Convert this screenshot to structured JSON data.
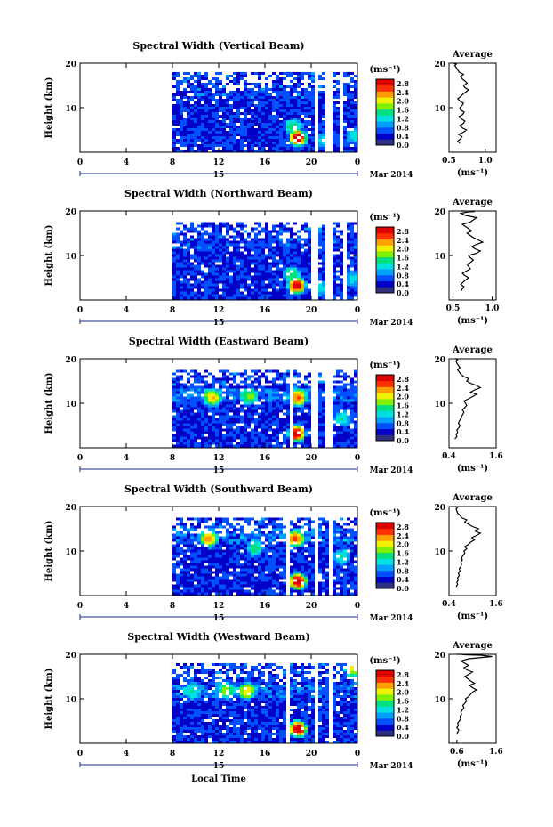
{
  "figure": {
    "xlabel": "Local Time",
    "date_label": "Mar 2014",
    "day_label": "15",
    "avg_title": "Average",
    "unit": "(ms⁻¹)",
    "ylabel": "Height (km)"
  },
  "colorbar": {
    "ticks": [
      "0.0",
      "0.4",
      "0.8",
      "1.2",
      "1.6",
      "2.0",
      "2.4",
      "2.8"
    ],
    "range": [
      0,
      3.0
    ],
    "colors": [
      "#303080",
      "#0000c8",
      "#0050ff",
      "#00a0ff",
      "#00e0e0",
      "#00e080",
      "#80f000",
      "#f0f000",
      "#ffa000",
      "#ff3000",
      "#e00000"
    ]
  },
  "chart_data": [
    {
      "type": "heatmap",
      "title": "Spectral Width (Vertical Beam)",
      "x_ticks": [
        "0",
        "4",
        "8",
        "12",
        "16",
        "20",
        "0"
      ],
      "xlim": [
        0,
        24
      ],
      "ylim": [
        0,
        20
      ],
      "y_ticks": [
        "20",
        "10"
      ],
      "data_start_hour": 8,
      "top_km": 18,
      "gaps": [
        [
          20.2,
          20.6
        ],
        [
          21.1,
          21.7
        ],
        [
          22.2,
          22.5
        ]
      ],
      "hot_spots": [
        [
          18.7,
          3.5,
          3.0
        ],
        [
          18.3,
          6.0,
          1.6
        ],
        [
          21.0,
          3.0,
          1.2
        ],
        [
          23.6,
          4.0,
          1.2
        ]
      ],
      "mid_band_km": 0,
      "average": {
        "xlim": [
          0.5,
          1.15
        ],
        "x_ticks": [
          "0.5",
          "1.0"
        ],
        "x": [
          0.65,
          0.62,
          0.66,
          0.68,
          0.63,
          0.7,
          0.74,
          0.68,
          0.65,
          0.7,
          0.72,
          0.67,
          0.64,
          0.69,
          0.71,
          0.66,
          0.65,
          0.68,
          0.7,
          0.65,
          0.62,
          0.66,
          0.69,
          0.73,
          0.77,
          0.72,
          0.7,
          0.75,
          0.72,
          0.68,
          0.66,
          0.7,
          0.64,
          0.62,
          0.6,
          0.58,
          0.6,
          0.59,
          0.57,
          0.56
        ],
        "y": [
          2.0,
          2.5,
          3.0,
          3.5,
          4.0,
          4.5,
          5.0,
          5.5,
          6.0,
          6.5,
          7.0,
          7.5,
          8.0,
          8.5,
          9.0,
          9.5,
          10.0,
          10.5,
          11.0,
          11.5,
          12.0,
          12.5,
          13.0,
          13.5,
          14.0,
          14.5,
          15.0,
          15.5,
          16.0,
          16.5,
          17.0,
          17.5,
          18.0,
          18.5,
          19.0,
          19.5,
          19.8,
          19.9,
          20.0,
          20.0
        ]
      }
    },
    {
      "type": "heatmap",
      "title": "Spectral Width (Northward Beam)",
      "x_ticks": [
        "0",
        "4",
        "8",
        "12",
        "16",
        "20",
        "0"
      ],
      "xlim": [
        0,
        24
      ],
      "ylim": [
        0,
        20
      ],
      "y_ticks": [
        "20",
        "10"
      ],
      "data_start_hour": 8,
      "top_km": 17.5,
      "gaps": [
        [
          20.0,
          20.5
        ],
        [
          21.1,
          21.6
        ],
        [
          22.6,
          22.9
        ]
      ],
      "hot_spots": [
        [
          18.6,
          3.5,
          3.0
        ],
        [
          18.2,
          6.0,
          1.6
        ],
        [
          20.7,
          3.0,
          1.2
        ],
        [
          23.5,
          5.0,
          1.2
        ]
      ],
      "mid_band_km": 0,
      "average": {
        "xlim": [
          0.45,
          1.05
        ],
        "x_ticks": [
          "0.5",
          "1.0"
        ],
        "x": [
          0.6,
          0.62,
          0.64,
          0.6,
          0.63,
          0.66,
          0.7,
          0.65,
          0.62,
          0.67,
          0.72,
          0.7,
          0.68,
          0.73,
          0.76,
          0.72,
          0.7,
          0.8,
          0.85,
          0.78,
          0.74,
          0.8,
          0.88,
          0.82,
          0.76,
          0.72,
          0.68,
          0.74,
          0.7,
          0.66,
          0.62,
          0.72,
          0.76,
          0.8,
          0.66,
          0.6,
          0.7,
          0.78,
          0.64,
          0.6
        ],
        "y": [
          2.0,
          2.5,
          3.0,
          3.5,
          4.0,
          4.5,
          5.0,
          5.5,
          6.0,
          6.5,
          7.0,
          7.5,
          8.0,
          8.5,
          9.0,
          9.5,
          10.0,
          10.5,
          11.0,
          11.5,
          12.0,
          12.5,
          13.0,
          13.5,
          14.0,
          14.5,
          15.0,
          15.5,
          16.0,
          16.5,
          17.0,
          17.5,
          18.0,
          18.5,
          19.0,
          19.5,
          19.8,
          19.9,
          20.0,
          20.0
        ]
      }
    },
    {
      "type": "heatmap",
      "title": "Spectral Width (Eastward Beam)",
      "x_ticks": [
        "0",
        "4",
        "8",
        "12",
        "16",
        "20",
        "0"
      ],
      "xlim": [
        0,
        24
      ],
      "ylim": [
        0,
        20
      ],
      "y_ticks": [
        "20",
        "10"
      ],
      "data_start_hour": 8,
      "top_km": 17.5,
      "gaps": [
        [
          18.0,
          18.3
        ],
        [
          20.0,
          20.5
        ],
        [
          21.2,
          21.7
        ]
      ],
      "hot_spots": [
        [
          18.6,
          3.5,
          3.0
        ],
        [
          18.7,
          11.5,
          2.6
        ],
        [
          11.3,
          11.5,
          2.2
        ],
        [
          14.5,
          11.8,
          1.8
        ],
        [
          22.6,
          7.0,
          1.4
        ]
      ],
      "mid_band_km": 12,
      "average": {
        "xlim": [
          0.4,
          1.6
        ],
        "x_ticks": [
          "0.4",
          "1.6"
        ],
        "x": [
          0.55,
          0.6,
          0.58,
          0.62,
          0.6,
          0.65,
          0.68,
          0.64,
          0.66,
          0.7,
          0.72,
          0.75,
          0.78,
          0.74,
          0.8,
          0.85,
          0.82,
          0.78,
          0.9,
          1.0,
          1.1,
          0.95,
          1.05,
          1.2,
          1.1,
          0.95,
          0.85,
          0.9,
          0.78,
          0.7,
          0.66,
          0.62,
          0.68,
          0.64,
          0.6,
          0.58,
          0.62,
          0.6,
          0.58,
          0.56
        ],
        "y": [
          2.0,
          2.5,
          3.0,
          3.5,
          4.0,
          4.5,
          5.0,
          5.5,
          6.0,
          6.5,
          7.0,
          7.5,
          8.0,
          8.5,
          9.0,
          9.5,
          10.0,
          10.5,
          11.0,
          11.5,
          12.0,
          12.5,
          13.0,
          13.5,
          14.0,
          14.5,
          15.0,
          15.5,
          16.0,
          16.5,
          17.0,
          17.5,
          18.0,
          18.5,
          19.0,
          19.5,
          19.8,
          19.9,
          20.0,
          20.0
        ]
      }
    },
    {
      "type": "heatmap",
      "title": "Spectral Width (Southward Beam)",
      "x_ticks": [
        "0",
        "4",
        "8",
        "12",
        "16",
        "20",
        "0"
      ],
      "xlim": [
        0,
        24
      ],
      "ylim": [
        0,
        20
      ],
      "y_ticks": [
        "20",
        "10"
      ],
      "data_start_hour": 8,
      "top_km": 17.5,
      "gaps": [
        [
          17.8,
          18.1
        ],
        [
          20.1,
          20.6
        ],
        [
          21.3,
          21.8
        ]
      ],
      "hot_spots": [
        [
          18.7,
          3.5,
          3.0
        ],
        [
          18.5,
          13.0,
          2.6
        ],
        [
          11.0,
          13.0,
          2.4
        ],
        [
          15.0,
          11.0,
          1.6
        ],
        [
          22.5,
          9.0,
          1.4
        ]
      ],
      "mid_band_km": 14,
      "average": {
        "xlim": [
          0.4,
          1.6
        ],
        "x_ticks": [
          "0.4",
          "1.6"
        ],
        "x": [
          0.58,
          0.62,
          0.6,
          0.64,
          0.62,
          0.66,
          0.64,
          0.68,
          0.66,
          0.7,
          0.72,
          0.7,
          0.74,
          0.72,
          0.76,
          0.8,
          0.78,
          0.85,
          0.8,
          0.9,
          0.95,
          1.05,
          0.98,
          1.1,
          1.2,
          1.05,
          1.15,
          1.0,
          0.9,
          0.8,
          0.85,
          0.72,
          0.68,
          0.62,
          0.6,
          0.58,
          0.62,
          0.6,
          0.58,
          0.56
        ],
        "y": [
          2.0,
          2.5,
          3.0,
          3.5,
          4.0,
          4.5,
          5.0,
          5.5,
          6.0,
          6.5,
          7.0,
          7.5,
          8.0,
          8.5,
          9.0,
          9.5,
          10.0,
          10.5,
          11.0,
          11.5,
          12.0,
          12.5,
          13.0,
          13.5,
          14.0,
          14.5,
          15.0,
          15.5,
          16.0,
          16.5,
          17.0,
          17.5,
          18.0,
          18.5,
          19.0,
          19.5,
          19.8,
          19.9,
          20.0,
          20.0
        ]
      }
    },
    {
      "type": "heatmap",
      "title": "Spectral Width (Westward Beam)",
      "x_ticks": [
        "0",
        "4",
        "8",
        "12",
        "16",
        "20",
        "0"
      ],
      "xlim": [
        0,
        24
      ],
      "ylim": [
        0,
        20
      ],
      "y_ticks": [
        "20",
        "10"
      ],
      "data_start_hour": 8,
      "top_km": 18,
      "gaps": [
        [
          17.6,
          17.9
        ],
        [
          20.1,
          20.6
        ],
        [
          21.3,
          21.8
        ]
      ],
      "hot_spots": [
        [
          18.7,
          3.5,
          3.0
        ],
        [
          14.3,
          12.0,
          2.2
        ],
        [
          12.5,
          12.0,
          1.8
        ],
        [
          23.5,
          17.0,
          2.0
        ],
        [
          9.5,
          12.0,
          1.4
        ]
      ],
      "mid_band_km": 12,
      "average": {
        "xlim": [
          0.4,
          1.6
        ],
        "x_ticks": [
          "0.6",
          "1.6"
        ],
        "x": [
          0.6,
          0.62,
          0.65,
          0.6,
          0.64,
          0.62,
          0.66,
          0.7,
          0.68,
          0.72,
          0.7,
          0.74,
          0.78,
          0.75,
          0.8,
          0.85,
          0.82,
          0.9,
          0.95,
          1.0,
          1.1,
          1.0,
          0.92,
          1.05,
          0.95,
          0.88,
          0.8,
          0.9,
          1.0,
          0.85,
          0.78,
          0.9,
          0.8,
          0.7,
          0.9,
          1.5,
          1.2,
          0.8,
          0.7,
          0.6
        ],
        "y": [
          2.0,
          2.5,
          3.0,
          3.5,
          4.0,
          4.5,
          5.0,
          5.5,
          6.0,
          6.5,
          7.0,
          7.5,
          8.0,
          8.5,
          9.0,
          9.5,
          10.0,
          10.5,
          11.0,
          11.5,
          12.0,
          12.5,
          13.0,
          13.5,
          14.0,
          14.5,
          15.0,
          15.5,
          16.0,
          16.5,
          17.0,
          17.5,
          18.0,
          18.5,
          19.0,
          19.5,
          19.8,
          19.9,
          20.0,
          20.0
        ]
      }
    }
  ]
}
